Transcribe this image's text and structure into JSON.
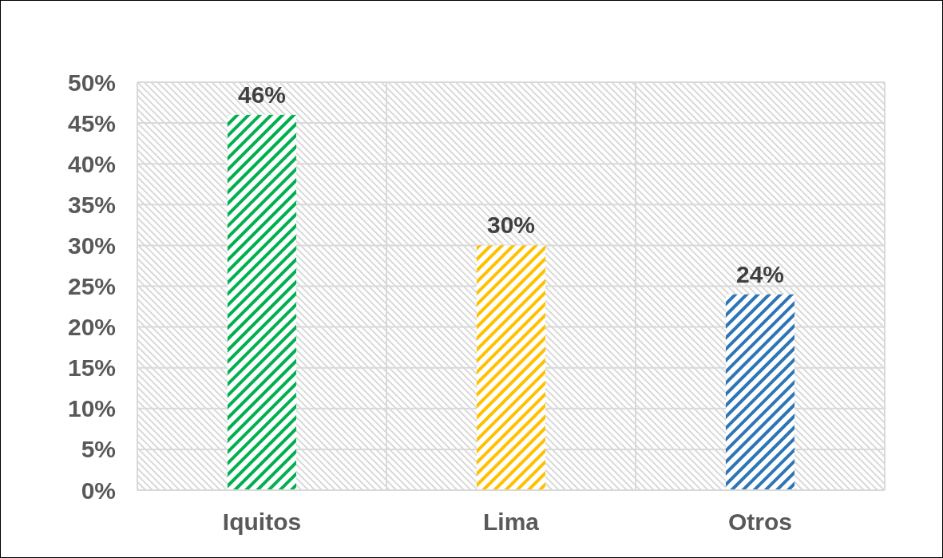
{
  "chart_data": {
    "type": "bar",
    "categories": [
      "Iquitos",
      "Lima",
      "Otros"
    ],
    "values": [
      46,
      30,
      24
    ],
    "colors": [
      "#00b050",
      "#ffc000",
      "#2e75b6"
    ],
    "ylim": [
      0,
      50
    ],
    "yticks": [
      {
        "value": 0,
        "label": "0%"
      },
      {
        "value": 5,
        "label": "5%"
      },
      {
        "value": 10,
        "label": "10%"
      },
      {
        "value": 15,
        "label": "15%"
      },
      {
        "value": 20,
        "label": "20%"
      },
      {
        "value": 25,
        "label": "25%"
      },
      {
        "value": 30,
        "label": "30%"
      },
      {
        "value": 35,
        "label": "35%"
      },
      {
        "value": 40,
        "label": "40%"
      },
      {
        "value": 45,
        "label": "45%"
      },
      {
        "value": 50,
        "label": "50%"
      }
    ],
    "grid": true,
    "value_labels": [
      "46%",
      "30%",
      "24%"
    ]
  }
}
